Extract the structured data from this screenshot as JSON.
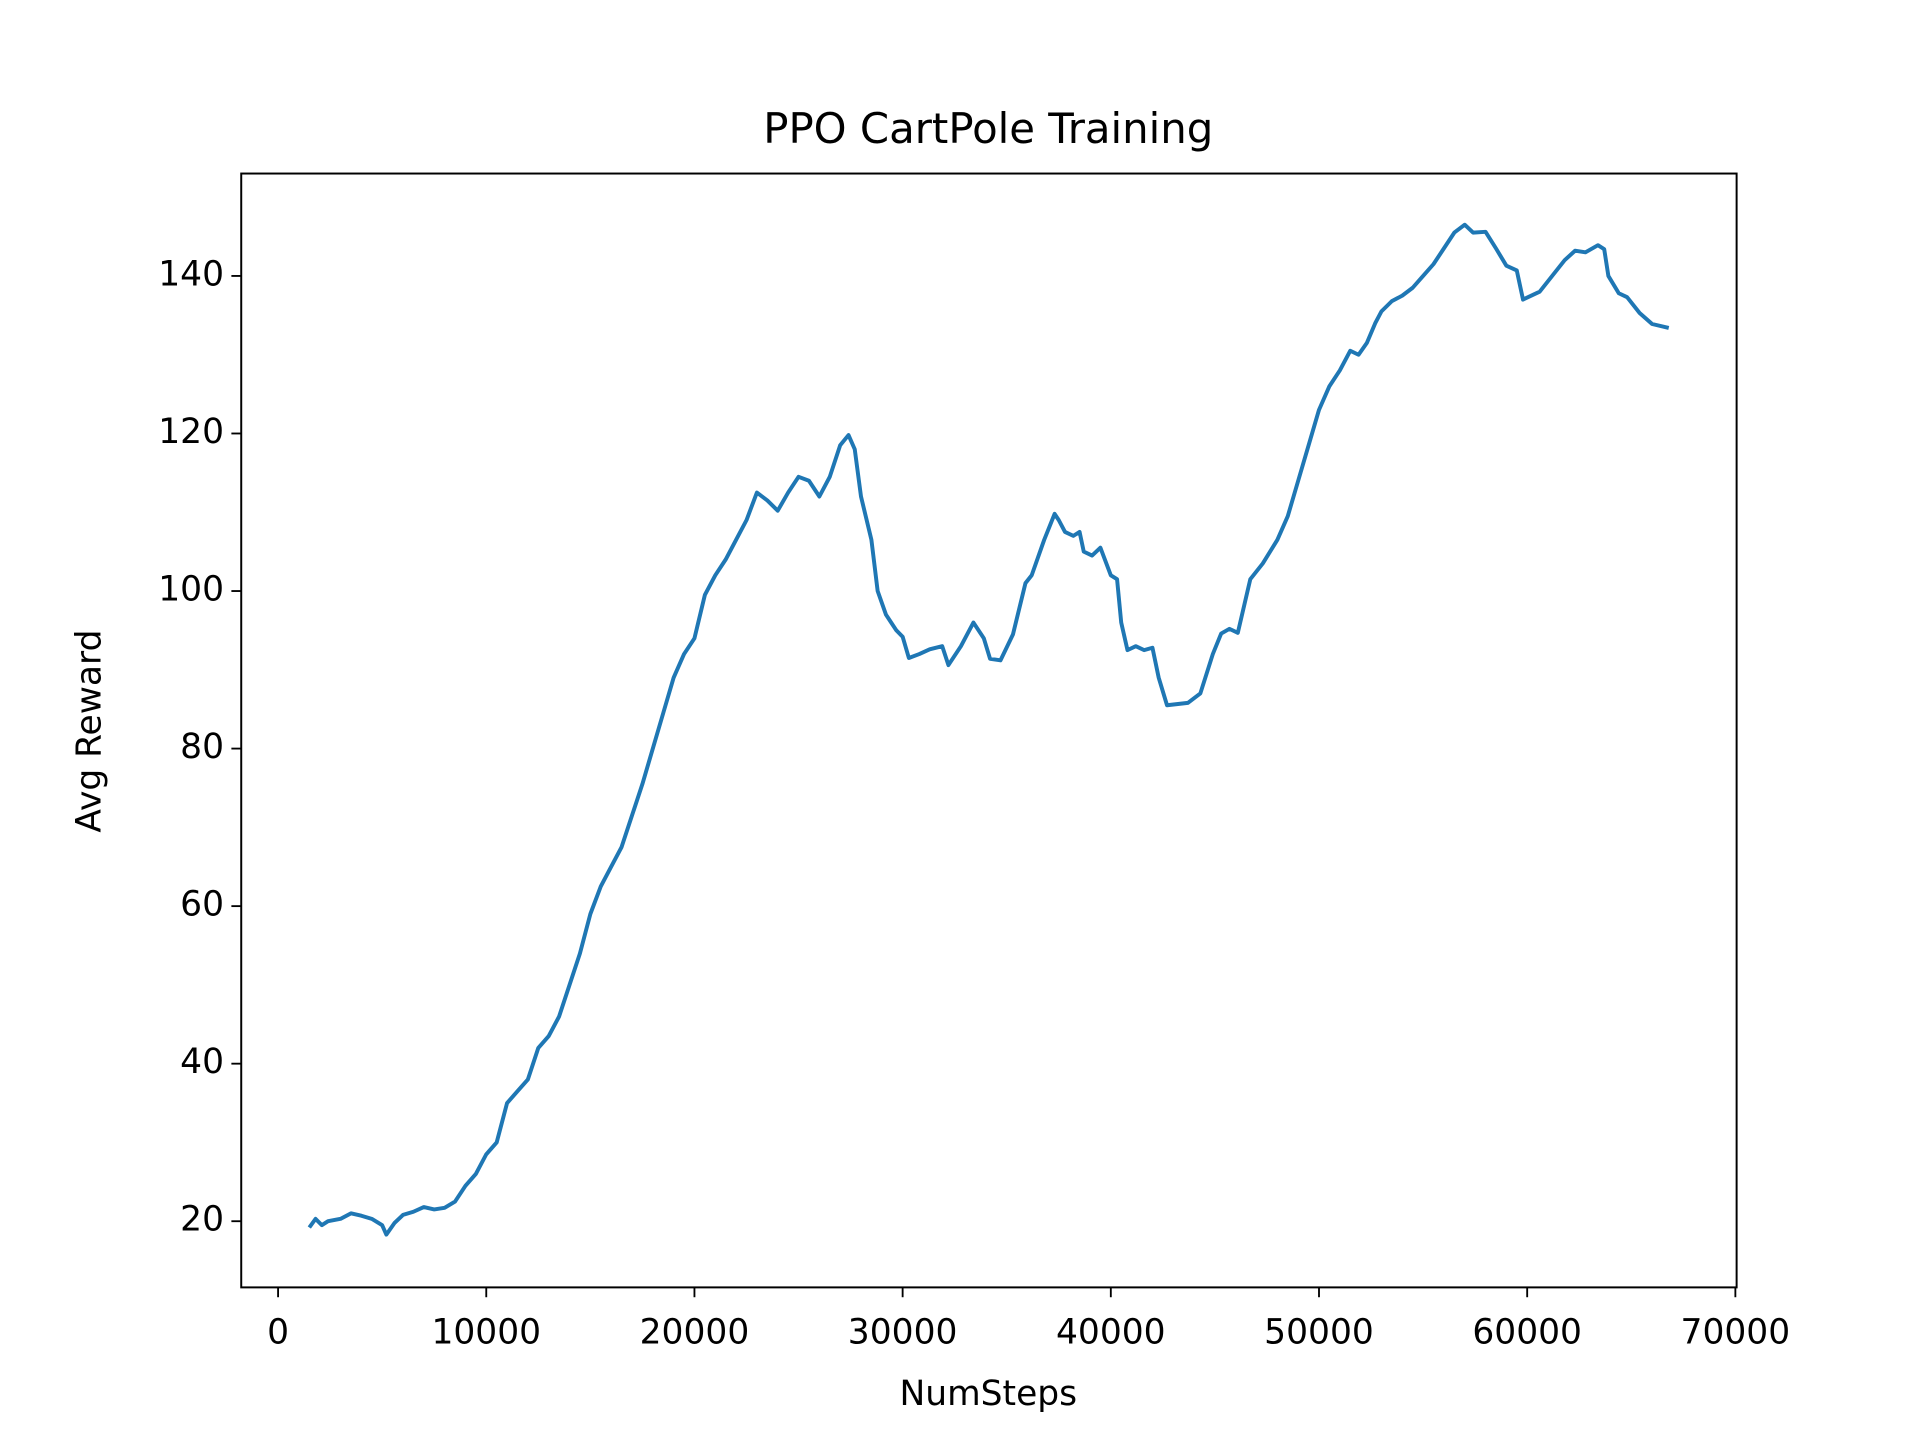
{
  "chart_data": {
    "type": "line",
    "title": "PPO CartPole Training",
    "x_label": "NumSteps",
    "y_label": "Avg Reward",
    "x": [
      1500,
      1800,
      2100,
      2400,
      3000,
      3500,
      4000,
      4500,
      5000,
      5200,
      5600,
      6000,
      6500,
      7000,
      7500,
      8000,
      8500,
      9000,
      9500,
      10000,
      10500,
      11000,
      11500,
      12000,
      12500,
      13000,
      13500,
      14000,
      14500,
      15000,
      15500,
      16000,
      16500,
      17000,
      17500,
      18000,
      18500,
      19000,
      19500,
      20000,
      20500,
      21000,
      21500,
      22000,
      22500,
      23000,
      23500,
      24000,
      24500,
      25000,
      25500,
      26000,
      26500,
      27000,
      27400,
      27700,
      28000,
      28500,
      28800,
      29200,
      29700,
      30000,
      30300,
      30800,
      31300,
      31900,
      32200,
      32800,
      33400,
      33900,
      34200,
      34700,
      35300,
      35900,
      36200,
      36800,
      37300,
      37500,
      37800,
      38200,
      38500,
      38700,
      39100,
      39500,
      40000,
      40300,
      40500,
      40800,
      41200,
      41600,
      42000,
      42300,
      42700,
      43700,
      44300,
      44900,
      45300,
      45700,
      46100,
      46700,
      47300,
      48000,
      48500,
      49000,
      49500,
      50000,
      50500,
      51000,
      51500,
      51900,
      52300,
      52700,
      53000,
      53500,
      54000,
      54500,
      55000,
      55500,
      56000,
      56500,
      57000,
      57400,
      58000,
      58500,
      59000,
      59500,
      59800,
      60600,
      61200,
      61800,
      62300,
      62800,
      63400,
      63700,
      63900,
      64400,
      64800,
      65400,
      66000,
      66800
    ],
    "series": [
      {
        "name": "Avg Reward",
        "color": "#1f77b4",
        "values": [
          19.2,
          20.3,
          19.5,
          20.0,
          20.3,
          21.0,
          20.7,
          20.3,
          19.5,
          18.3,
          19.8,
          20.8,
          21.2,
          21.8,
          21.5,
          21.7,
          22.5,
          24.5,
          26.0,
          28.5,
          30.0,
          35.0,
          36.5,
          38.0,
          42.0,
          43.5,
          46.0,
          50.0,
          54.0,
          59.0,
          62.5,
          65.0,
          67.5,
          71.5,
          75.5,
          80.0,
          84.5,
          89.0,
          92.0,
          94.0,
          99.5,
          102.0,
          104.0,
          106.5,
          109.0,
          112.5,
          111.5,
          110.2,
          112.5,
          114.5,
          114.0,
          112.0,
          114.5,
          118.5,
          119.8,
          118.0,
          112.0,
          106.5,
          100.0,
          97.0,
          95.0,
          94.2,
          91.5,
          92.0,
          92.6,
          93.0,
          90.6,
          93.0,
          96.0,
          94.0,
          91.4,
          91.2,
          94.5,
          101.0,
          102.0,
          106.5,
          109.8,
          109.0,
          107.5,
          107.0,
          107.5,
          105.0,
          104.5,
          105.5,
          102.0,
          101.5,
          96.0,
          92.5,
          93.0,
          92.5,
          92.8,
          89.0,
          85.5,
          85.8,
          87.0,
          92.0,
          94.6,
          95.2,
          94.7,
          101.5,
          103.5,
          106.5,
          109.5,
          114.0,
          118.5,
          123.0,
          126.0,
          128.0,
          130.5,
          130.0,
          131.5,
          134.0,
          135.5,
          136.8,
          137.5,
          138.5,
          140.0,
          141.5,
          143.5,
          145.5,
          146.5,
          145.5,
          145.6,
          143.5,
          141.3,
          140.7,
          137.0,
          138.0,
          140.0,
          142.0,
          143.2,
          143.0,
          143.9,
          143.4,
          140.0,
          137.8,
          137.3,
          135.3,
          133.9,
          133.4
        ]
      }
    ],
    "xlim": [
      -1770,
      70060
    ],
    "ylim": [
      11.6,
      153.0
    ],
    "xticks": [
      0,
      10000,
      20000,
      30000,
      40000,
      50000,
      60000,
      70000
    ],
    "yticks": [
      20,
      40,
      60,
      80,
      100,
      120,
      140
    ]
  }
}
